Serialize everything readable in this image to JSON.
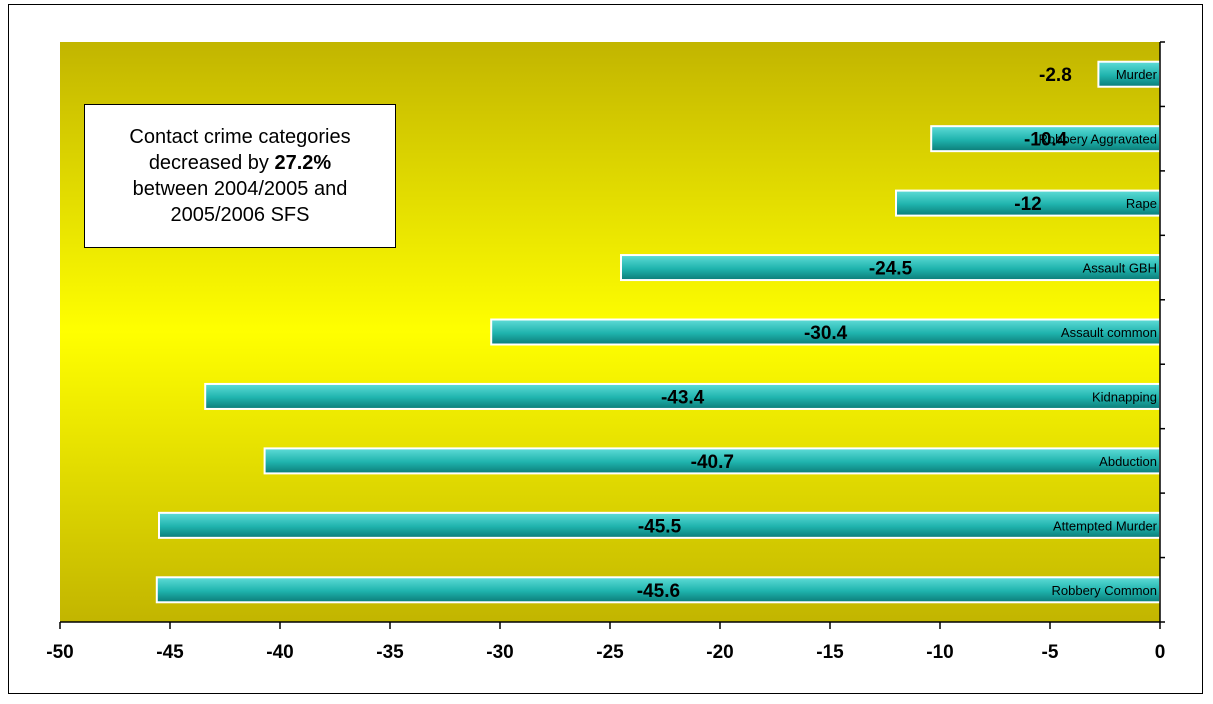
{
  "colors": {
    "plot_gradient_edge": "#c2b500",
    "plot_gradient_center": "#ffff00",
    "bar_fill_light": "#5fdcd7",
    "bar_fill_mid": "#1fb3ad",
    "bar_fill_dark": "#0b7c78",
    "bar_border": "#ffffff",
    "text": "#000000"
  },
  "annotation": {
    "line1": "Contact crime categories",
    "line2_prefix": "decreased by ",
    "line2_bold": "27.2%",
    "line3": "between 2004/2005 and",
    "line4": "2005/2006 SFS"
  },
  "chart_data": {
    "type": "bar",
    "orientation": "horizontal",
    "title": "",
    "xlabel": "",
    "ylabel": "",
    "xlim": [
      -50,
      0
    ],
    "x_ticks": [
      -50,
      -45,
      -40,
      -35,
      -30,
      -25,
      -20,
      -15,
      -10,
      -5,
      0
    ],
    "x_tick_labels": [
      "-50",
      "-45",
      "-40",
      "-35",
      "-30",
      "-25",
      "-20",
      "-15",
      "-10",
      "-5",
      "0"
    ],
    "categories": [
      "Murder",
      "Robbery  Aggravated",
      "Rape",
      "Assault GBH",
      "Assault common",
      "Kidnapping",
      "Abduction",
      "Attempted Murder",
      "Robbery Common"
    ],
    "values": [
      -2.8,
      -10.4,
      -12,
      -24.5,
      -30.4,
      -43.4,
      -40.7,
      -45.5,
      -45.6
    ],
    "value_labels": [
      "-2.8",
      "-10.4",
      "-12",
      "-24.5",
      "-30.4",
      "-43.4",
      "-40.7",
      "-45.5",
      "-45.6"
    ],
    "grid": false,
    "legend": "none"
  }
}
